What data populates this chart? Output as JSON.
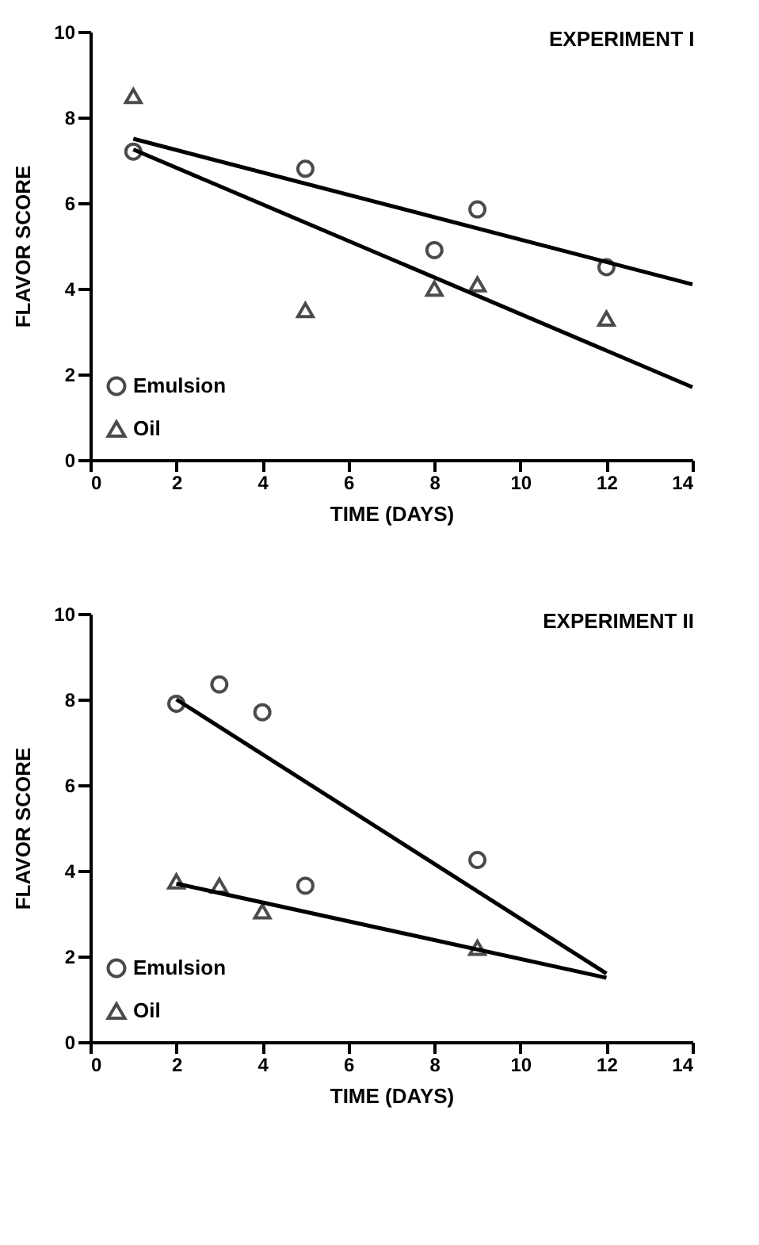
{
  "chart_data": [
    {
      "type": "scatter",
      "title": "EXPERIMENT I",
      "xlabel": "TIME (DAYS)",
      "ylabel": "FLAVOR SCORE",
      "xlim": [
        0,
        14
      ],
      "ylim": [
        0,
        10
      ],
      "xticks": [
        0,
        2,
        4,
        6,
        8,
        10,
        12,
        14
      ],
      "yticks": [
        0,
        2,
        4,
        6,
        8,
        10
      ],
      "grid": false,
      "legend": "bottom left",
      "series": [
        {
          "name": "Emulsion",
          "marker": "circle",
          "color": "#000000",
          "x": [
            1,
            5,
            8,
            9,
            12
          ],
          "values": [
            7.2,
            6.8,
            4.9,
            5.85,
            4.5
          ]
        },
        {
          "name": "Oil",
          "marker": "triangle",
          "color": "#000000",
          "x": [
            1,
            5,
            8,
            9,
            12
          ],
          "values": [
            8.5,
            3.5,
            4.0,
            4.1,
            3.3
          ]
        },
        {
          "type": "line",
          "marker": "none",
          "line_style": "solid",
          "color": "#000000",
          "x": [
            1,
            14
          ],
          "values": [
            7.5,
            4.1
          ]
        },
        {
          "type": "line",
          "marker": "none",
          "line_style": "solid",
          "color": "#000000",
          "x": [
            1,
            14
          ],
          "values": [
            7.25,
            1.7
          ]
        }
      ]
    },
    {
      "type": "scatter",
      "title": "EXPERIMENT II",
      "xlabel": "TIME (DAYS)",
      "ylabel": "FLAVOR SCORE",
      "xlim": [
        0,
        14
      ],
      "ylim": [
        0,
        10
      ],
      "xticks": [
        0,
        2,
        4,
        6,
        8,
        10,
        12,
        14
      ],
      "yticks": [
        0,
        2,
        4,
        6,
        8,
        10
      ],
      "grid": false,
      "legend": "bottom left",
      "series": [
        {
          "name": "Emulsion",
          "marker": "circle",
          "color": "#000000",
          "x": [
            2,
            3,
            4,
            5,
            9
          ],
          "values": [
            7.9,
            8.35,
            7.7,
            3.65,
            4.25
          ]
        },
        {
          "name": "Oil",
          "marker": "triangle",
          "color": "#000000",
          "x": [
            2,
            3,
            4,
            9
          ],
          "values": [
            3.75,
            3.65,
            3.05,
            2.2
          ]
        },
        {
          "type": "line",
          "marker": "none",
          "line_style": "solid",
          "color": "#000000",
          "x": [
            2,
            12
          ],
          "values": [
            8.0,
            1.6
          ]
        },
        {
          "type": "line",
          "marker": "none",
          "line_style": "solid",
          "color": "#000000",
          "x": [
            2,
            12
          ],
          "values": [
            3.7,
            1.5
          ]
        }
      ]
    }
  ]
}
